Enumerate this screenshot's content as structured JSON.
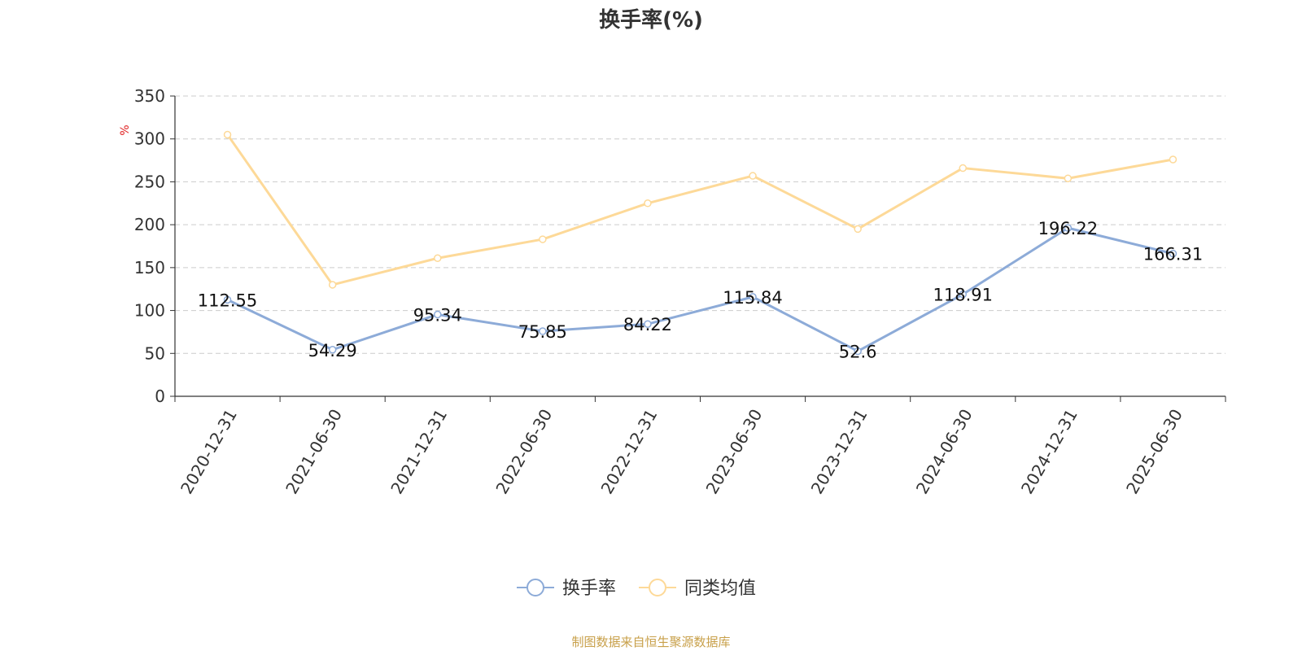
{
  "chart_data": {
    "type": "line",
    "title": "换手率(%)",
    "unit_label": "%",
    "categories": [
      "2020-12-31",
      "2021-06-30",
      "2021-12-31",
      "2022-06-30",
      "2022-12-31",
      "2023-06-30",
      "2023-12-31",
      "2024-06-30",
      "2024-12-31",
      "2025-06-30"
    ],
    "ylim": [
      0,
      350
    ],
    "yticks": [
      0,
      50,
      100,
      150,
      200,
      250,
      300,
      350
    ],
    "grid": true,
    "legend_position": "bottom-center",
    "series": [
      {
        "name": "换手率",
        "color": "#8dabd8",
        "values": [
          112.55,
          54.29,
          95.34,
          75.85,
          84.22,
          115.84,
          52.6,
          118.91,
          196.22,
          166.31
        ],
        "labels": [
          "112.55",
          "54.29",
          "95.34",
          "75.85",
          "84.22",
          "115.84",
          "52.6",
          "118.91",
          "196.22",
          "166.31"
        ]
      },
      {
        "name": "同类均值",
        "color": "#fdd998",
        "values": [
          305,
          130,
          161,
          183,
          225,
          257,
          195,
          266,
          254,
          276
        ]
      }
    ]
  },
  "footer": {
    "source": "制图数据来自恒生聚源数据库"
  }
}
